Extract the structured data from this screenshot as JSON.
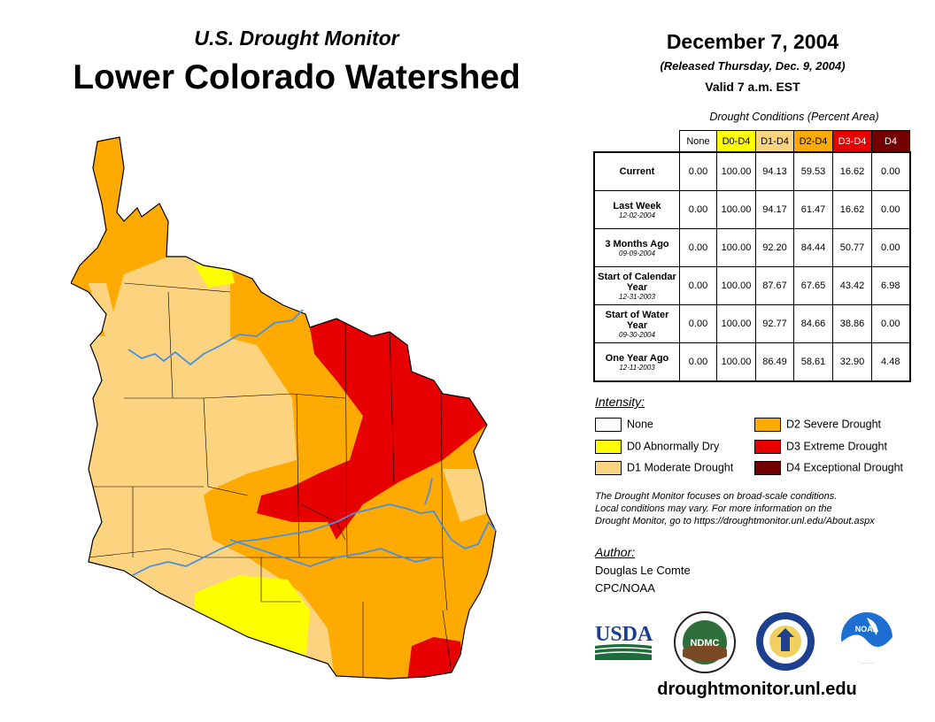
{
  "header": {
    "subtitle": "U.S. Drought Monitor",
    "title": "Lower Colorado Watershed",
    "date": "December 7, 2004",
    "released": "(Released Thursday, Dec. 9, 2004)",
    "valid": "Valid 7 a.m. EST"
  },
  "table": {
    "caption": "Drought Conditions (Percent Area)",
    "columns": [
      "None",
      "D0-D4",
      "D1-D4",
      "D2-D4",
      "D3-D4",
      "D4"
    ],
    "rows": [
      {
        "label": "Current",
        "date": "",
        "values": [
          "0.00",
          "100.00",
          "94.13",
          "59.53",
          "16.62",
          "0.00"
        ]
      },
      {
        "label": "Last Week",
        "date": "12-02-2004",
        "values": [
          "0.00",
          "100.00",
          "94.17",
          "61.47",
          "16.62",
          "0.00"
        ]
      },
      {
        "label": "3 Months Ago",
        "date": "09-09-2004",
        "values": [
          "0.00",
          "100.00",
          "92.20",
          "84.44",
          "50.77",
          "0.00"
        ]
      },
      {
        "label": "Start of Calendar Year",
        "date": "12-31-2003",
        "values": [
          "0.00",
          "100.00",
          "87.67",
          "67.65",
          "43.42",
          "6.98"
        ]
      },
      {
        "label": "Start of Water Year",
        "date": "09-30-2004",
        "values": [
          "0.00",
          "100.00",
          "92.77",
          "84.66",
          "38.86",
          "0.00"
        ]
      },
      {
        "label": "One Year Ago",
        "date": "12-11-2003",
        "values": [
          "0.00",
          "100.00",
          "86.49",
          "58.61",
          "32.90",
          "4.48"
        ]
      }
    ]
  },
  "legend": {
    "title": "Intensity:",
    "items": [
      {
        "label": "None",
        "color": "#ffffff"
      },
      {
        "label": "D0 Abnormally Dry",
        "color": "#ffff00"
      },
      {
        "label": "D1 Moderate Drought",
        "color": "#fcd37f"
      },
      {
        "label": "D2 Severe Drought",
        "color": "#ffaa00"
      },
      {
        "label": "D3 Extreme Drought",
        "color": "#e60000"
      },
      {
        "label": "D4 Exceptional Drought",
        "color": "#730000"
      }
    ]
  },
  "note": {
    "line1": "The Drought Monitor focuses on broad-scale conditions.",
    "line2": "Local conditions may vary. For more information on the",
    "line3": "Drought Monitor, go to https://droughtmonitor.unl.edu/About.aspx"
  },
  "author": {
    "heading": "Author:",
    "name": "Douglas Le Comte",
    "org": "CPC/NOAA"
  },
  "logos": {
    "usda": "USDA",
    "ndmc": "NDMC",
    "noaa": "NOAA"
  },
  "footer": {
    "site": "droughtmonitor.unl.edu"
  },
  "colors": {
    "d0": "#ffff00",
    "d1": "#fcd37f",
    "d2": "#ffaa00",
    "d3": "#e60000",
    "d4": "#730000",
    "river": "#4a90e2",
    "border": "#000000"
  }
}
